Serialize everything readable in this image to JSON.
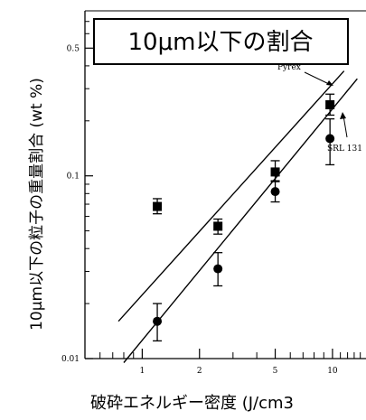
{
  "chart_data": {
    "type": "scatter",
    "title": "10μm以下の割合",
    "xlabel": "破砕エネルギー密度 (J/cm3",
    "ylabel": "10μm以下の粒子の重量割合 (wt %)",
    "x_scale": "log",
    "y_scale": "log",
    "xlim": [
      0.5,
      15
    ],
    "ylim": [
      0.01,
      0.8
    ],
    "x_tick_labels": [
      "1",
      "2",
      "5",
      "10"
    ],
    "y_tick_labels": [
      "0.01",
      "0.1",
      "0.5"
    ],
    "grid": false,
    "series": [
      {
        "name": "Pyrex",
        "marker": "square",
        "points": [
          {
            "x": 1.2,
            "y": 0.068,
            "err_low": 0.062,
            "err_high": 0.075
          },
          {
            "x": 2.5,
            "y": 0.053,
            "err_low": 0.048,
            "err_high": 0.058
          },
          {
            "x": 5.0,
            "y": 0.105,
            "err_low": 0.094,
            "err_high": 0.121
          },
          {
            "x": 9.7,
            "y": 0.245,
            "err_low": 0.215,
            "err_high": 0.28
          }
        ],
        "fit_line": {
          "x": [
            0.75,
            11.5
          ],
          "y": [
            0.016,
            0.375
          ]
        }
      },
      {
        "name": "SRL 131",
        "marker": "circle",
        "points": [
          {
            "x": 1.2,
            "y": 0.016,
            "err_low": 0.0125,
            "err_high": 0.02
          },
          {
            "x": 2.5,
            "y": 0.031,
            "err_low": 0.025,
            "err_high": 0.038
          },
          {
            "x": 5.0,
            "y": 0.082,
            "err_low": 0.072,
            "err_high": 0.093
          },
          {
            "x": 9.7,
            "y": 0.16,
            "err_low": 0.115,
            "err_high": 0.205
          }
        ],
        "fit_line": {
          "x": [
            0.8,
            13.5
          ],
          "y": [
            0.0095,
            0.34
          ]
        }
      }
    ],
    "annotations": [
      {
        "text": "Pyrex",
        "series": "Pyrex"
      },
      {
        "text": "SRL 131",
        "series": "SRL 131"
      }
    ]
  }
}
